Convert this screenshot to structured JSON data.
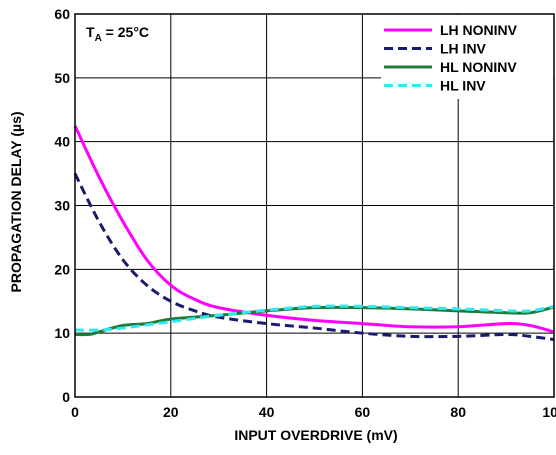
{
  "chart_data": {
    "type": "line",
    "title": "",
    "xlabel": "INPUT OVERDRIVE (mV)",
    "ylabel": "PROPAGATION DELAY (µs)",
    "xlim": [
      0,
      100
    ],
    "ylim": [
      0,
      60
    ],
    "xticks": [
      0,
      20,
      40,
      60,
      80,
      100
    ],
    "yticks": [
      0,
      10,
      20,
      30,
      40,
      50,
      60
    ],
    "grid": true,
    "legend_position": "top-right",
    "annotation": {
      "main": "T",
      "subscript": "A",
      "rest": " = 25°C"
    },
    "series": [
      {
        "name": "LH NONINV",
        "color": "#ff00ff",
        "dash": "solid",
        "x": [
          0,
          5,
          10,
          15,
          20,
          25,
          30,
          40,
          50,
          60,
          70,
          80,
          90,
          95,
          100
        ],
        "y": [
          42.5,
          34.5,
          27.5,
          21.5,
          17.5,
          15.3,
          14.0,
          12.8,
          12.0,
          11.5,
          11.0,
          11.0,
          11.5,
          11.2,
          10.2
        ]
      },
      {
        "name": "LH INV",
        "color": "#1a1a6e",
        "dash": "dashed",
        "x": [
          0,
          5,
          10,
          15,
          20,
          25,
          30,
          40,
          50,
          60,
          70,
          80,
          90,
          95,
          100
        ],
        "y": [
          35.0,
          27.5,
          21.5,
          17.5,
          15.0,
          13.5,
          12.5,
          11.5,
          10.8,
          10.0,
          9.5,
          9.5,
          9.8,
          9.5,
          9.0
        ]
      },
      {
        "name": "HL NONINV",
        "color": "#1e7a3a",
        "dash": "solid",
        "x": [
          0,
          3,
          5,
          10,
          15,
          20,
          30,
          40,
          50,
          60,
          70,
          80,
          90,
          95,
          100
        ],
        "y": [
          9.8,
          9.8,
          10.2,
          11.2,
          11.5,
          12.2,
          12.8,
          13.5,
          14.0,
          14.0,
          13.8,
          13.5,
          13.2,
          13.2,
          14.1
        ]
      },
      {
        "name": "HL INV",
        "color": "#33e6f0",
        "dash": "dashed",
        "x": [
          0,
          5,
          10,
          20,
          30,
          40,
          50,
          60,
          70,
          80,
          90,
          95,
          100
        ],
        "y": [
          10.5,
          10.5,
          10.8,
          11.8,
          12.8,
          13.6,
          14.2,
          14.2,
          14.0,
          13.8,
          13.5,
          13.5,
          14.2
        ]
      }
    ]
  }
}
